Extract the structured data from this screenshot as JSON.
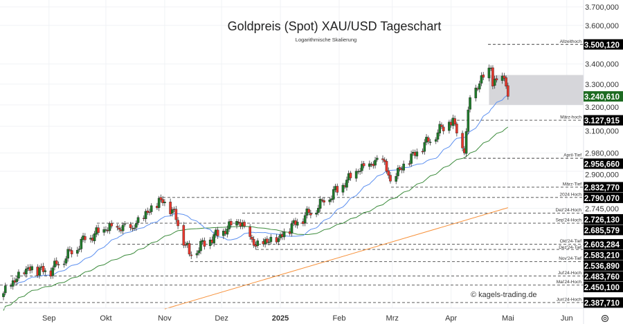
{
  "chart_data": {
    "type": "candlestick",
    "title": "Goldpreis (Spot) XAU/USD Tageschart",
    "subtitle": "Logarithmische Skalierung",
    "watermark": "© kagels-trading.de",
    "scale": "log",
    "ylim": [
      2370,
      3760
    ],
    "x_ticks": [
      {
        "label": "Sep",
        "date": "2024-09-01"
      },
      {
        "label": "Okt",
        "date": "2024-10-01"
      },
      {
        "label": "Nov",
        "date": "2024-11-01"
      },
      {
        "label": "Dez",
        "date": "2024-12-01"
      },
      {
        "label": "2025",
        "date": "2025-01-01"
      },
      {
        "label": "Feb",
        "date": "2025-02-01"
      },
      {
        "label": "Mrz",
        "date": "2025-03-01"
      },
      {
        "label": "Apr",
        "date": "2025-04-01"
      },
      {
        "label": "Mai",
        "date": "2025-05-01"
      },
      {
        "label": "Jun",
        "date": "2025-06-01"
      }
    ],
    "y_ticks": [
      {
        "label": "3.700,000",
        "value": 3700
      },
      {
        "label": "3.600,000",
        "value": 3600
      },
      {
        "label": "3.400,000",
        "value": 3400
      },
      {
        "label": "3.300,000",
        "value": 3300
      },
      {
        "label": "3.200,000",
        "value": 3200
      },
      {
        "label": "3.100,000",
        "value": 3100
      },
      {
        "label": "2.980,000",
        "value": 2980
      },
      {
        "label": "2.900,000",
        "value": 2900
      },
      {
        "label": "2.745,000",
        "value": 2745
      }
    ],
    "close_anchors": [
      [
        "2024-08-08",
        2420
      ],
      [
        "2024-08-20",
        2510
      ],
      [
        "2024-09-01",
        2500
      ],
      [
        "2024-09-20",
        2620
      ],
      [
        "2024-10-01",
        2660
      ],
      [
        "2024-10-15",
        2665
      ],
      [
        "2024-10-30",
        2780
      ],
      [
        "2024-11-05",
        2740
      ],
      [
        "2024-11-14",
        2565
      ],
      [
        "2024-11-25",
        2620
      ],
      [
        "2024-12-10",
        2690
      ],
      [
        "2024-12-19",
        2595
      ],
      [
        "2024-12-31",
        2625
      ],
      [
        "2025-01-10",
        2690
      ],
      [
        "2025-01-24",
        2770
      ],
      [
        "2025-02-11",
        2900
      ],
      [
        "2025-02-24",
        2950
      ],
      [
        "2025-02-28",
        2858
      ],
      [
        "2025-03-14",
        2985
      ],
      [
        "2025-03-31",
        3120
      ],
      [
        "2025-04-03",
        3110
      ],
      [
        "2025-04-08",
        2980
      ],
      [
        "2025-04-11",
        3235
      ],
      [
        "2025-04-22",
        3380
      ],
      [
        "2025-04-23",
        3290
      ],
      [
        "2025-04-25",
        3320
      ],
      [
        "2025-04-28",
        3340
      ],
      [
        "2025-04-30",
        3290
      ],
      [
        "2025-05-01",
        3240.61
      ]
    ],
    "sma200": {
      "start": [
        "2024-11-01",
        2365
      ],
      "end": [
        "2025-05-01",
        2748
      ],
      "color": "#f7913a"
    },
    "sma50_color": "#3a8a3a",
    "sma20_color": "#5b8ff0",
    "current_price": {
      "label": "3.240,610",
      "value": 3240.61,
      "color": "#1e6b22"
    },
    "zone": {
      "from": "2025-04-21",
      "low": 3200,
      "high": 3345
    },
    "levels": [
      {
        "name": "Allzeithoch",
        "label": "3.500,120",
        "value": 3500.12
      },
      {
        "name": "März-hoch",
        "label": "3.127,915",
        "value": 3127.915
      },
      {
        "name": "April-Tief",
        "label": "2.956,660",
        "value": 2956.66
      },
      {
        "name": "März-Tief",
        "label": "2.832,770",
        "value": 2832.77
      },
      {
        "name": "2024 Hoch",
        "label": "2.790,070",
        "value": 2790.07
      },
      {
        "name": "Dez'24-Hoch",
        "label": "2.726,130",
        "value": 2726.13
      },
      {
        "name": "Sep'24-Hoch",
        "label": "2.685,579",
        "value": 2685.579
      },
      {
        "name": "Okt'24-Tief",
        "label": "2.603,284",
        "value": 2603.284
      },
      {
        "name": "Dez'24-Tief",
        "label": "2.583,210",
        "value": 2583.21
      },
      {
        "name": "Nov'24-Tief",
        "label": "2.536,890",
        "value": 2536.89
      },
      {
        "name": "Jul'24-Hoch",
        "label": "2.483,760",
        "value": 2483.76
      },
      {
        "name": "Mai'24-Hoch",
        "label": "2.450,100",
        "value": 2450.1
      },
      {
        "name": "Jun'24-Hoch",
        "label": "2.387,710",
        "value": 2387.71
      }
    ],
    "colors": {
      "up": "#1f7a2a",
      "down": "#e8372c"
    }
  },
  "settings_icon": "gear-icon"
}
